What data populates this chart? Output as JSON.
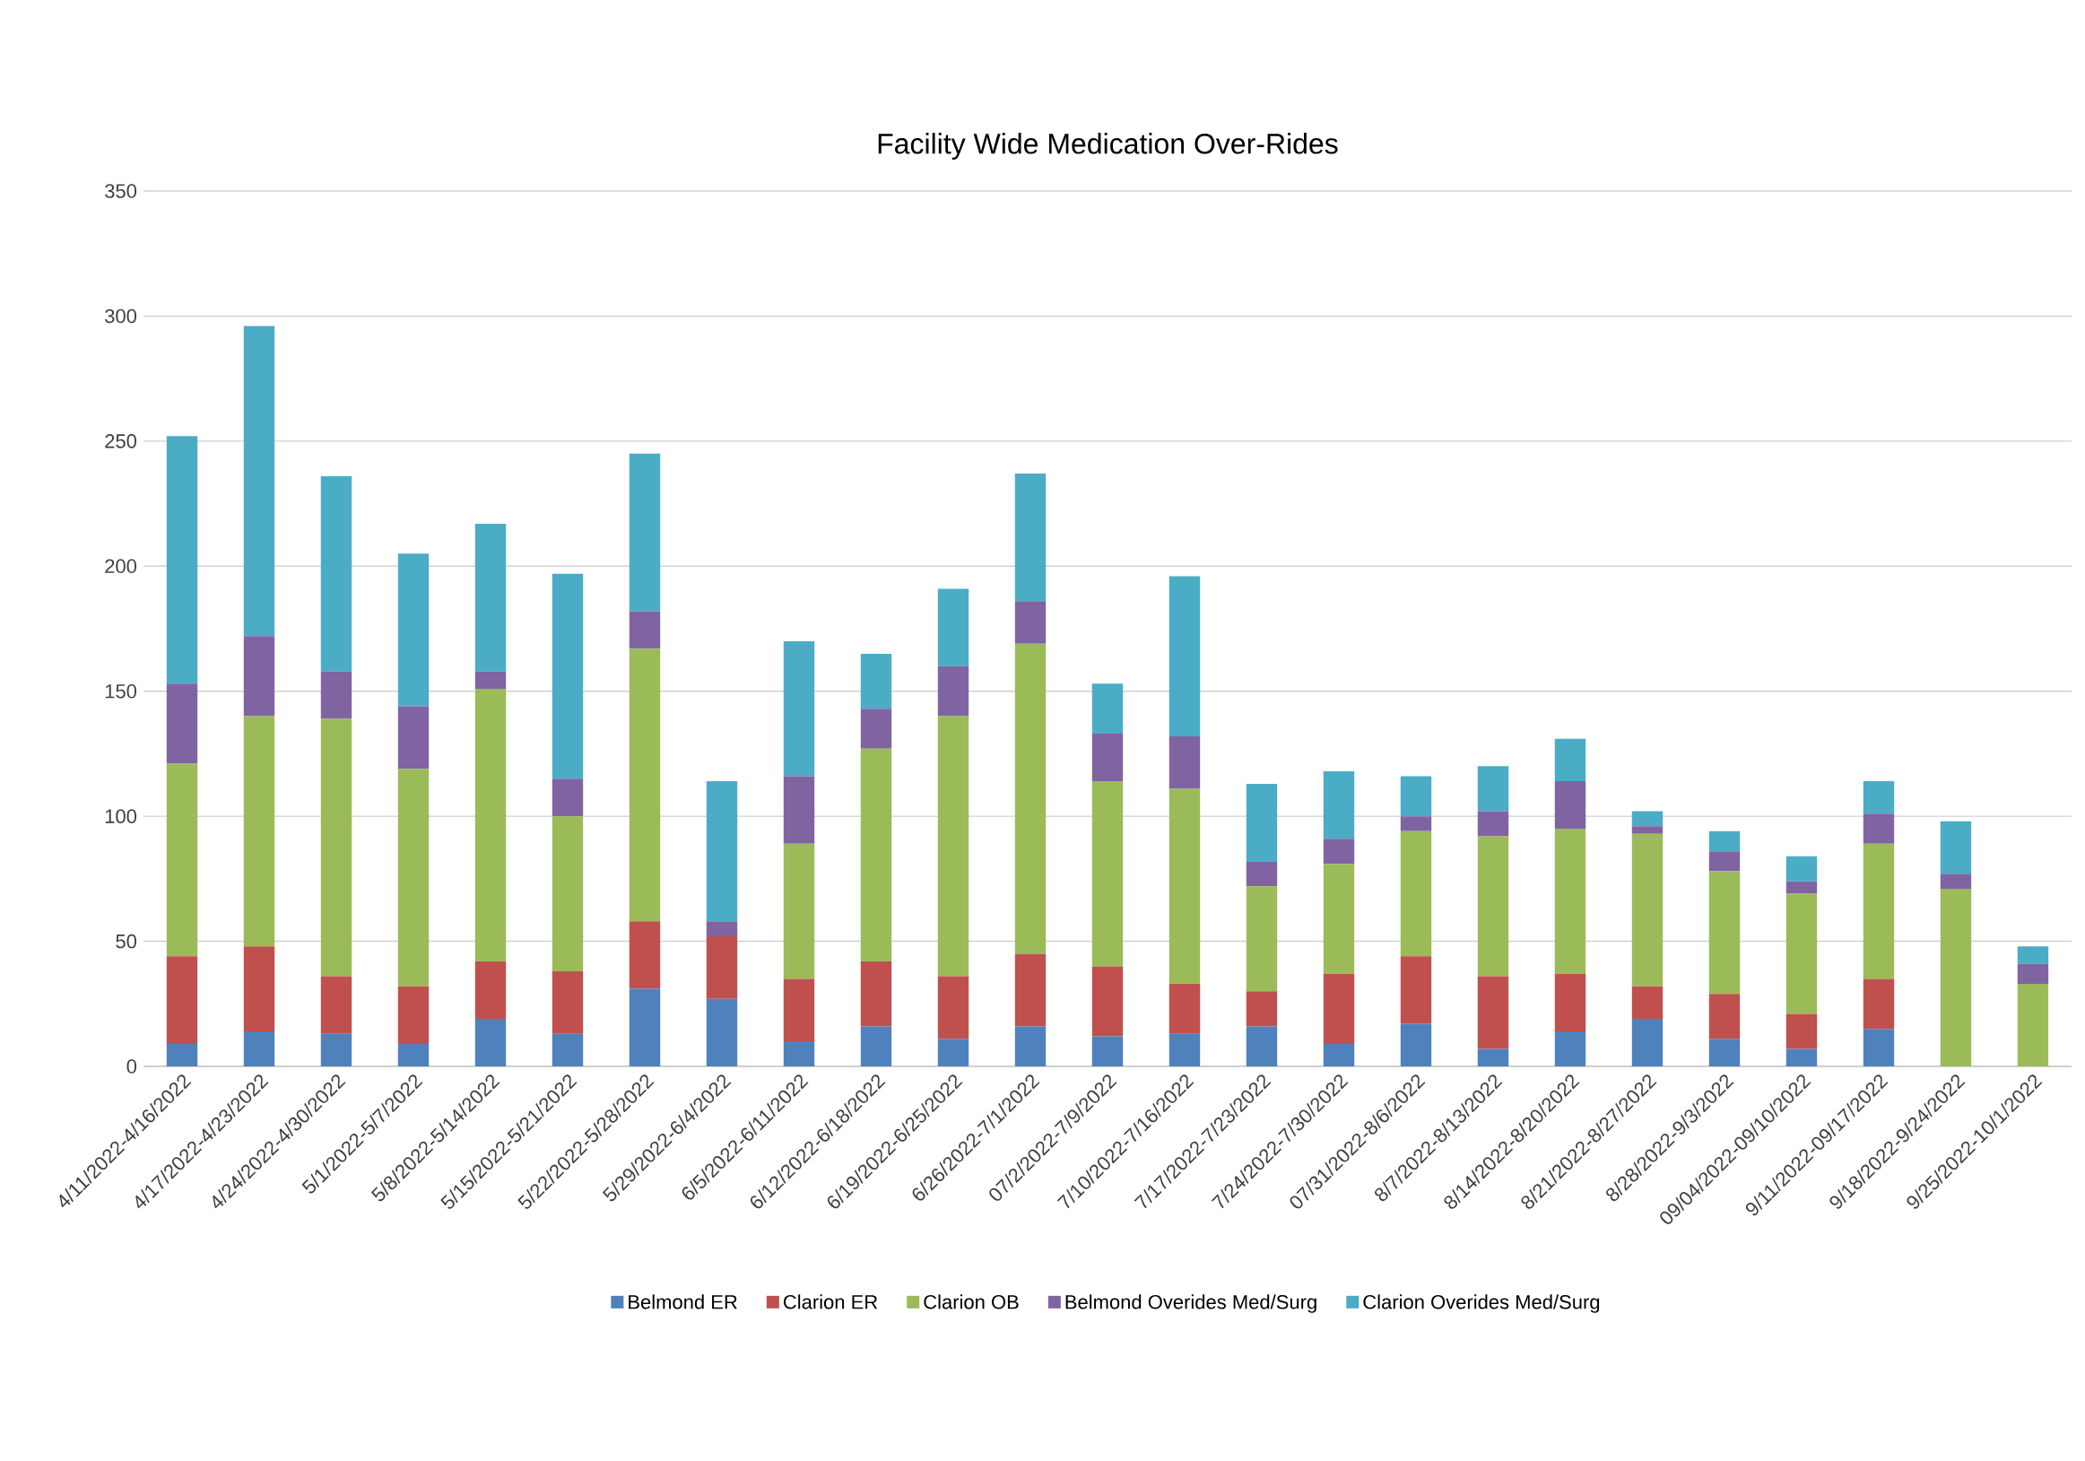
{
  "chart_data": {
    "type": "bar",
    "title": "Facility Wide Medication Over-Rides",
    "stacked": true,
    "categories": [
      "4/11/2022-4/16/2022",
      "4/17/2022-4/23/2022",
      "4/24/2022-4/30/2022",
      "5/1/2022-5/7/2022",
      "5/8/2022-5/14/2022",
      "5/15/2022-5/21/2022",
      "5/22/2022-5/28/2022",
      "5/29/2022-6/4/2022",
      "6/5/2022-6/11/2022",
      "6/12/2022-6/18/2022",
      "6/19/2022-6/25/2022",
      "6/26/2022-7/1/2022",
      "07/2/2022-7/9/2022",
      "7/10/2022-7/16/2022",
      "7/17/2022-7/23/2022",
      "7/24/2022-7/30/2022",
      "07/31/2022-8/6/2022",
      "8/7/2022-8/13/2022",
      "8/14/2022-8/20/2022",
      "8/21/2022-8/27/2022",
      "8/28/2022-9/3/2022",
      "09/04/2022-09/10/2022",
      "9/11/2022-09/17/2022",
      "9/18/2022-9/24/2022",
      "9/25/2022-10/1/2022"
    ],
    "series": [
      {
        "name": "Belmond ER",
        "color": "#4f81bd",
        "values": [
          9,
          14,
          13,
          9,
          19,
          13,
          31,
          27,
          10,
          16,
          11,
          16,
          12,
          13,
          16,
          9,
          17,
          7,
          14,
          19,
          11,
          7,
          15,
          0,
          0
        ]
      },
      {
        "name": "Clarion ER",
        "color": "#c0504d",
        "values": [
          35,
          34,
          23,
          23,
          23,
          25,
          27,
          25,
          25,
          26,
          25,
          29,
          28,
          20,
          14,
          28,
          27,
          29,
          23,
          13,
          18,
          14,
          20,
          0,
          0
        ]
      },
      {
        "name": "Clarion OB",
        "color": "#9bbb59",
        "values": [
          77,
          92,
          103,
          87,
          109,
          62,
          109,
          0,
          54,
          85,
          104,
          124,
          74,
          78,
          42,
          44,
          50,
          56,
          58,
          61,
          49,
          48,
          54,
          71,
          33
        ]
      },
      {
        "name": "Belmond Overides Med/Surg",
        "color": "#8064a2",
        "values": [
          32,
          32,
          19,
          25,
          7,
          15,
          15,
          6,
          27,
          16,
          20,
          17,
          19,
          21,
          10,
          10,
          6,
          10,
          19,
          3,
          8,
          5,
          12,
          6,
          8
        ]
      },
      {
        "name": "Clarion Overides Med/Surg",
        "color": "#4bacc6",
        "values": [
          99,
          124,
          78,
          61,
          59,
          82,
          63,
          56,
          54,
          22,
          31,
          51,
          20,
          64,
          31,
          27,
          16,
          18,
          17,
          6,
          8,
          10,
          13,
          21,
          7
        ]
      }
    ],
    "ylim": [
      0,
      350
    ],
    "yticks": [
      0,
      50,
      100,
      150,
      200,
      250,
      300,
      350
    ],
    "grid": "y",
    "legend": "bottom"
  }
}
